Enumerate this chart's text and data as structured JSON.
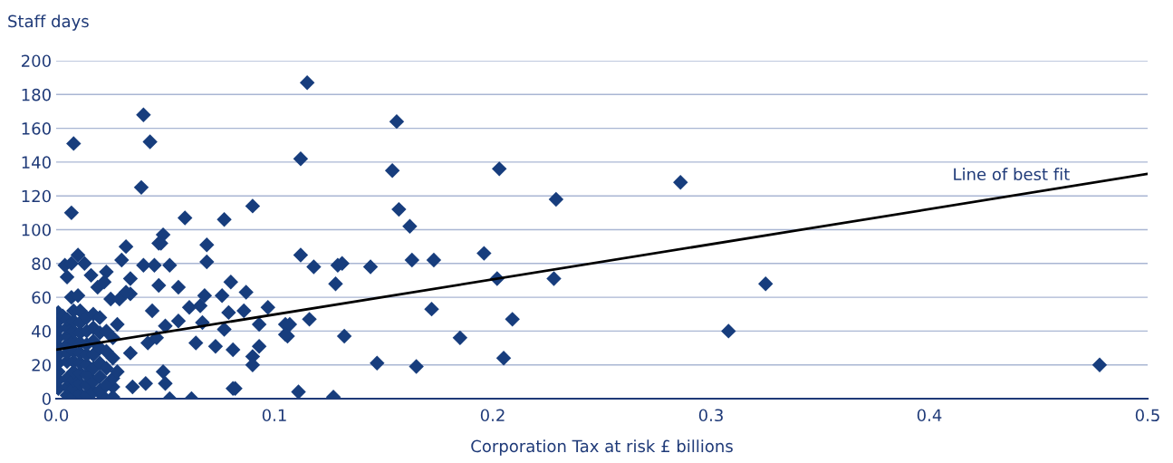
{
  "chart_data": {
    "type": "scatter",
    "xlabel": "Corporation Tax at risk £ billions",
    "ylabel": "Staff days",
    "xlim": [
      0,
      0.5
    ],
    "xticks": [
      {
        "value": 0,
        "label": "0.0"
      },
      0.1,
      0.2,
      0.3,
      0.4,
      0.5
    ],
    "ylim": [
      0,
      200
    ],
    "yticks": [
      0,
      20,
      40,
      60,
      80,
      100,
      120,
      140,
      160,
      180,
      200
    ],
    "grid": "y",
    "marker": "diamond",
    "annotations": [
      "Line of best fit"
    ],
    "series": [
      {
        "color": "#173d7d",
        "x": [
          0.115,
          0.156,
          0.04,
          0.043,
          0.008,
          0.039,
          0.112,
          0.154,
          0.203,
          0.286,
          0.229,
          0.157,
          0.162,
          0.007,
          0.059,
          0.077,
          0.09,
          0.049,
          0.048,
          0.069,
          0.032,
          0.196,
          0.112,
          0.163,
          0.173,
          0.118,
          0.129,
          0.131,
          0.144,
          0.069,
          0.04,
          0.052,
          0.045,
          0.202,
          0.228,
          0.325,
          0.128,
          0.116,
          0.209,
          0.172,
          0.308,
          0.132,
          0.185,
          0.106,
          0.105,
          0.147,
          0.165,
          0.205,
          0.478,
          0.111,
          0.127,
          0.052,
          0.062,
          0.082,
          0.03,
          0.047,
          0.023,
          0.034,
          0.056,
          0.047,
          0.08,
          0.087,
          0.076,
          0.068,
          0.034,
          0.044,
          0.061,
          0.066,
          0.079,
          0.086,
          0.097,
          0.093,
          0.107,
          0.105,
          0.077,
          0.067,
          0.056,
          0.05,
          0.042,
          0.046,
          0.064,
          0.073,
          0.081,
          0.093,
          0.09,
          0.09,
          0.034,
          0.049,
          0.05,
          0.035,
          0.041,
          0.026,
          0.081,
          0.021,
          0.026,
          0.004,
          0.007,
          0.01,
          0.013,
          0.005,
          0.016,
          0.007,
          0.01,
          0.019,
          0.022,
          0.025,
          0.029,
          0.032,
          0.001,
          0.001,
          0.001,
          0.001,
          0.001,
          0.001,
          0.001,
          0.001,
          0.001,
          0.001,
          0.003,
          0.005,
          0.005,
          0.005,
          0.005,
          0.005,
          0.005,
          0.005,
          0.005,
          0.005,
          0.008,
          0.008,
          0.008,
          0.008,
          0.008,
          0.008,
          0.008,
          0.008,
          0.008,
          0.008,
          0.011,
          0.011,
          0.011,
          0.011,
          0.011,
          0.011,
          0.011,
          0.011,
          0.011,
          0.014,
          0.014,
          0.014,
          0.014,
          0.014,
          0.014,
          0.014,
          0.014,
          0.017,
          0.017,
          0.017,
          0.017,
          0.017,
          0.017,
          0.017,
          0.02,
          0.02,
          0.02,
          0.02,
          0.02,
          0.02,
          0.023,
          0.023,
          0.023,
          0.023,
          0.026,
          0.026,
          0.026,
          0.028,
          0.028
        ],
        "values": [
          187,
          164,
          168,
          152,
          151,
          125,
          142,
          135,
          136,
          128,
          118,
          112,
          102,
          110,
          107,
          106,
          114,
          97,
          92,
          91,
          90,
          86,
          85,
          82,
          82,
          78,
          79,
          80,
          78,
          81,
          79,
          79,
          79,
          71,
          71,
          68,
          68,
          47,
          47,
          53,
          40,
          37,
          36,
          37,
          44,
          21,
          19,
          24,
          20,
          4,
          1,
          0,
          0,
          6,
          82,
          92,
          75,
          71,
          66,
          67,
          69,
          63,
          61,
          61,
          62,
          52,
          54,
          55,
          51,
          52,
          54,
          44,
          44,
          38,
          41,
          45,
          46,
          43,
          33,
          36,
          33,
          31,
          29,
          31,
          25,
          20,
          27,
          16,
          9,
          7,
          9,
          7,
          6,
          2,
          1,
          79,
          80,
          85,
          80,
          72,
          73,
          60,
          61,
          66,
          69,
          59,
          59,
          63,
          6,
          11,
          16,
          21,
          26,
          31,
          36,
          41,
          46,
          51,
          49,
          2,
          7,
          12,
          22,
          27,
          32,
          37,
          42,
          47,
          1,
          6,
          11,
          16,
          22,
          28,
          34,
          40,
          46,
          52,
          3,
          9,
          15,
          21,
          27,
          33,
          39,
          45,
          52,
          2,
          8,
          14,
          20,
          26,
          32,
          40,
          48,
          4,
          10,
          18,
          26,
          34,
          42,
          50,
          5,
          13,
          21,
          30,
          39,
          48,
          8,
          18,
          28,
          40,
          12,
          24,
          36,
          16,
          44
        ]
      },
      {
        "type": "line",
        "color": "#000000",
        "marker": "none",
        "x": [
          0,
          0.5
        ],
        "values": [
          29,
          133
        ]
      }
    ]
  }
}
